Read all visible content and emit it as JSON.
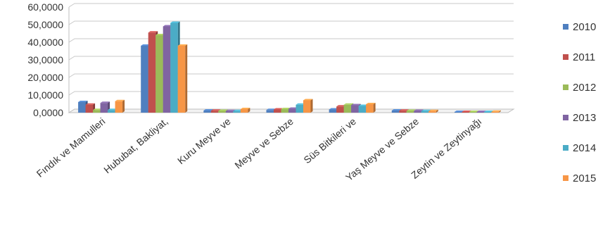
{
  "chart_data": {
    "type": "bar",
    "title": "",
    "xlabel": "",
    "ylabel": "",
    "ylim": [
      0,
      60000
    ],
    "yticks": [
      "0,0000",
      "10,0000",
      "20,0000",
      "30,0000",
      "40,0000",
      "50,0000",
      "60,0000"
    ],
    "grid": true,
    "legend_position": "right",
    "categories": [
      "Fındık ve Mamulleri",
      "Hububat, Bakliyat,",
      "Kuru Meyve ve",
      "Meyve ve Sebze",
      "Süs Bitkileri ve",
      "Yaş Meyve ve Sebze",
      "Zeytin ve Zeytinyağı"
    ],
    "series": [
      {
        "name": "2010",
        "color": "#4f7fbf",
        "values": [
          6000,
          38000,
          1200,
          1500,
          1800,
          1200,
          400
        ]
      },
      {
        "name": "2011",
        "color": "#c0504d",
        "values": [
          4500,
          45500,
          1100,
          1800,
          3500,
          1100,
          400
        ]
      },
      {
        "name": "2012",
        "color": "#9bbb59",
        "values": [
          1500,
          44000,
          1000,
          2000,
          4500,
          1000,
          400
        ]
      },
      {
        "name": "2013",
        "color": "#8064a2",
        "values": [
          5500,
          49000,
          900,
          2200,
          4200,
          1000,
          400
        ]
      },
      {
        "name": "2014",
        "color": "#4bacc6",
        "values": [
          1500,
          51000,
          900,
          4500,
          3800,
          900,
          400
        ]
      },
      {
        "name": "2015",
        "color": "#f79646",
        "values": [
          6500,
          38000,
          2000,
          7000,
          4800,
          900,
          500
        ]
      }
    ]
  }
}
